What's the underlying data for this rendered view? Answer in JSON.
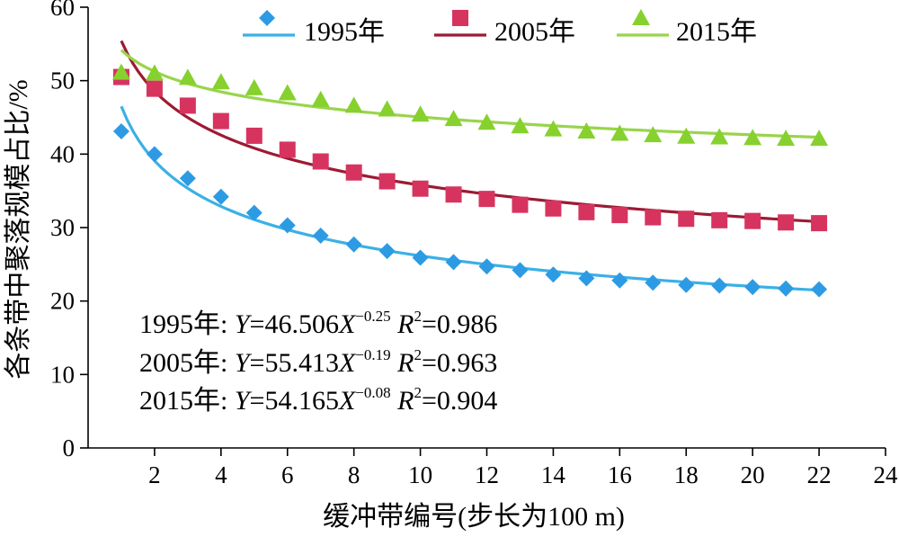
{
  "chart_data": {
    "type": "scatter",
    "title": "",
    "xlabel": "缓冲带编号(步长为100 m)",
    "ylabel": "各条带中聚落规模占比/%",
    "xlim": [
      0,
      24
    ],
    "ylim": [
      0,
      60
    ],
    "x_ticks": [
      2,
      4,
      6,
      8,
      10,
      12,
      14,
      16,
      18,
      20,
      22,
      24
    ],
    "y_ticks": [
      0,
      10,
      20,
      30,
      40,
      50,
      60
    ],
    "legend_position": "top",
    "x": [
      1,
      2,
      3,
      4,
      5,
      6,
      7,
      8,
      9,
      10,
      11,
      12,
      13,
      14,
      15,
      16,
      17,
      18,
      19,
      20,
      21,
      22
    ],
    "series": [
      {
        "name": "1995年",
        "marker": "diamond",
        "color": "#2d9be3",
        "values": [
          43.1,
          40.0,
          36.7,
          34.2,
          32.0,
          30.3,
          28.9,
          27.7,
          26.8,
          25.9,
          25.3,
          24.7,
          24.2,
          23.6,
          23.1,
          22.8,
          22.5,
          22.2,
          22.1,
          21.9,
          21.7,
          21.6
        ],
        "fit": {
          "a": 46.506,
          "b": -0.25,
          "r2": 0.986
        }
      },
      {
        "name": "2005年",
        "marker": "square",
        "color": "#d6345f",
        "values": [
          50.5,
          48.9,
          46.6,
          44.5,
          42.5,
          40.6,
          39.0,
          37.5,
          36.3,
          35.3,
          34.5,
          33.9,
          33.1,
          32.6,
          32.1,
          31.7,
          31.4,
          31.2,
          31.0,
          30.9,
          30.7,
          30.6
        ],
        "fit": {
          "a": 55.413,
          "b": -0.19,
          "r2": 0.963
        }
      },
      {
        "name": "2015年",
        "marker": "triangle",
        "color": "#86d12e",
        "values": [
          51.1,
          51.0,
          50.4,
          49.8,
          49.0,
          48.3,
          47.4,
          46.6,
          46.1,
          45.4,
          44.8,
          44.3,
          43.8,
          43.4,
          43.1,
          42.8,
          42.6,
          42.4,
          42.3,
          42.2,
          42.1,
          42.1
        ],
        "fit": {
          "a": 54.165,
          "b": -0.08,
          "r2": 0.904
        }
      }
    ],
    "fit_line_colors": [
      "#3bb0e6",
      "#9c1b33",
      "#99d44c"
    ],
    "equations": [
      {
        "label": "1995年: ",
        "Y": "Y",
        "eq": "=46.506",
        "X": "X",
        "exp": "−0.25",
        "R": "R",
        "two": "2",
        "r2": "=0.986"
      },
      {
        "label": "2005年: ",
        "Y": "Y",
        "eq": "=55.413",
        "X": "X",
        "exp": "−0.19",
        "R": "R",
        "two": "2",
        "r2": "=0.963"
      },
      {
        "label": "2015年: ",
        "Y": "Y",
        "eq": "=54.165",
        "X": "X",
        "exp": "−0.08",
        "R": "R",
        "two": "2",
        "r2": "=0.904"
      }
    ]
  }
}
